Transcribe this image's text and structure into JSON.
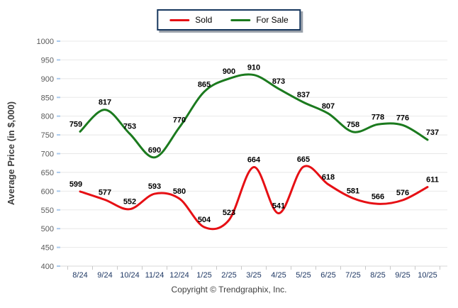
{
  "legend": {
    "items": [
      {
        "label": "Sold",
        "color": "#e60f14"
      },
      {
        "label": "For Sale",
        "color": "#1b7a1e"
      }
    ],
    "border_color": "#17375e"
  },
  "chart_data": {
    "type": "line",
    "title": "",
    "xlabel": "",
    "ylabel": "Average Price (in $,000)",
    "categories": [
      "8/24",
      "9/24",
      "10/24",
      "11/24",
      "12/24",
      "1/25",
      "2/25",
      "3/25",
      "4/25",
      "5/25",
      "6/25",
      "7/25",
      "8/25",
      "9/25",
      "10/25"
    ],
    "series": [
      {
        "name": "Sold",
        "color": "#e60f14",
        "values": [
          599,
          577,
          552,
          593,
          580,
          504,
          523,
          664,
          541,
          665,
          618,
          581,
          566,
          576,
          611
        ]
      },
      {
        "name": "For Sale",
        "color": "#1b7a1e",
        "values": [
          759,
          817,
          753,
          690,
          770,
          865,
          900,
          910,
          873,
          837,
          807,
          758,
          778,
          776,
          737
        ]
      }
    ],
    "ylim": [
      400,
      1000
    ],
    "yticks": [
      400,
      450,
      500,
      550,
      600,
      650,
      700,
      750,
      800,
      850,
      900,
      950,
      1000
    ],
    "grid": true,
    "smooth": true,
    "legend_position": "top-center",
    "data_labels": true
  },
  "styles": {
    "grid_color": "#e8e8e8",
    "baseline_color": "#d9d9d9",
    "y_tick_color": "#a9c9ec",
    "x_tick_color": "#c8c8c8",
    "y_label_color": "#5a5a5a",
    "x_label_color": "#1f3864",
    "data_label_color": "#000000"
  },
  "footer": {
    "copyright": "Copyright © Trendgraphix, Inc."
  }
}
